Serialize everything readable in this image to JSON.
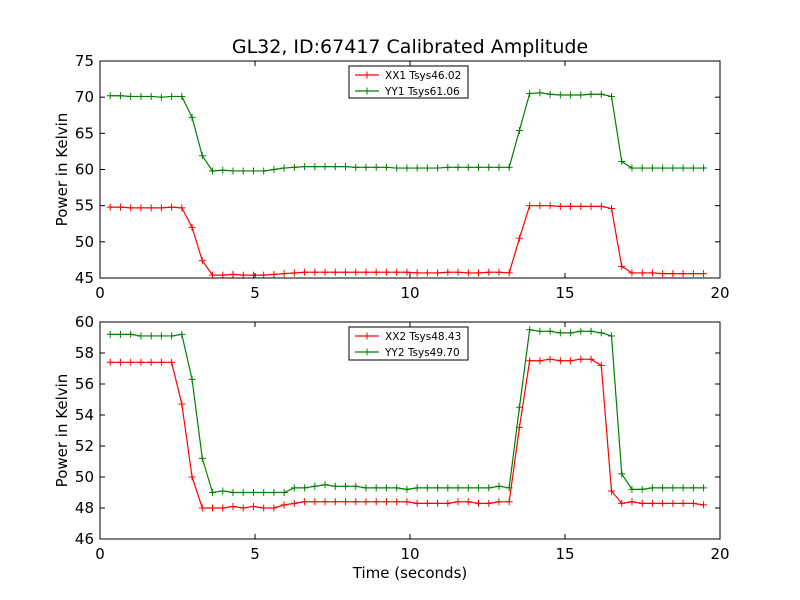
{
  "figure": {
    "title": "GL32, ID:67417 Calibrated Amplitude",
    "xlabel": "Time (seconds)"
  },
  "chart_data": [
    {
      "type": "line",
      "title": "GL32, ID:67417 Calibrated Amplitude",
      "xlabel": "",
      "ylabel": "Power in Kelvin",
      "xlim": [
        0,
        20
      ],
      "ylim": [
        45,
        75
      ],
      "xticks": [
        0,
        5,
        10,
        15,
        20
      ],
      "yticks": [
        45,
        50,
        55,
        60,
        65,
        70,
        75
      ],
      "grid": false,
      "legend_position": "top-center",
      "x": [
        0.33,
        0.66,
        0.99,
        1.32,
        1.65,
        1.98,
        2.31,
        2.64,
        2.97,
        3.3,
        3.63,
        3.96,
        4.29,
        4.62,
        4.95,
        5.28,
        5.61,
        5.94,
        6.27,
        6.6,
        6.93,
        7.26,
        7.59,
        7.92,
        8.25,
        8.58,
        8.91,
        9.24,
        9.57,
        9.9,
        10.23,
        10.56,
        10.89,
        11.22,
        11.55,
        11.88,
        12.21,
        12.54,
        12.87,
        13.2,
        13.53,
        13.86,
        14.19,
        14.52,
        14.85,
        15.18,
        15.51,
        15.84,
        16.17,
        16.5,
        16.83,
        17.16,
        17.49,
        17.82,
        18.15,
        18.48,
        18.81,
        19.14,
        19.47
      ],
      "series": [
        {
          "name": "XX1 Tsys46.02",
          "color": "#ff0000",
          "values": [
            54.8,
            54.8,
            54.7,
            54.7,
            54.7,
            54.7,
            54.8,
            54.7,
            52.0,
            47.4,
            45.4,
            45.4,
            45.5,
            45.4,
            45.4,
            45.4,
            45.5,
            45.6,
            45.7,
            45.8,
            45.8,
            45.8,
            45.8,
            45.8,
            45.8,
            45.8,
            45.8,
            45.8,
            45.8,
            45.8,
            45.7,
            45.7,
            45.7,
            45.8,
            45.8,
            45.7,
            45.7,
            45.8,
            45.8,
            45.7,
            50.5,
            55.0,
            55.0,
            55.0,
            54.9,
            54.9,
            54.9,
            54.9,
            54.9,
            54.6,
            46.6,
            45.7,
            45.7,
            45.7,
            45.6,
            45.6,
            45.6,
            45.6,
            45.6
          ]
        },
        {
          "name": "YY1 Tsys61.06",
          "color": "#008000",
          "values": [
            70.2,
            70.2,
            70.1,
            70.1,
            70.1,
            70.0,
            70.1,
            70.1,
            67.2,
            61.9,
            59.8,
            59.9,
            59.8,
            59.8,
            59.8,
            59.8,
            60.0,
            60.2,
            60.3,
            60.4,
            60.4,
            60.4,
            60.4,
            60.4,
            60.3,
            60.3,
            60.3,
            60.3,
            60.2,
            60.2,
            60.2,
            60.2,
            60.2,
            60.3,
            60.3,
            60.3,
            60.3,
            60.3,
            60.3,
            60.3,
            65.4,
            70.5,
            70.6,
            70.4,
            70.3,
            70.3,
            70.3,
            70.4,
            70.4,
            70.1,
            61.1,
            60.2,
            60.2,
            60.2,
            60.2,
            60.2,
            60.2,
            60.2,
            60.2
          ]
        }
      ]
    },
    {
      "type": "line",
      "title": "",
      "xlabel": "Time (seconds)",
      "ylabel": "Power in Kelvin",
      "xlim": [
        0,
        20
      ],
      "ylim": [
        46,
        60
      ],
      "xticks": [
        0,
        5,
        10,
        15,
        20
      ],
      "yticks": [
        46,
        48,
        50,
        52,
        54,
        56,
        58,
        60
      ],
      "grid": false,
      "legend_position": "top-center",
      "x": [
        0.33,
        0.66,
        0.99,
        1.32,
        1.65,
        1.98,
        2.31,
        2.64,
        2.97,
        3.3,
        3.63,
        3.96,
        4.29,
        4.62,
        4.95,
        5.28,
        5.61,
        5.94,
        6.27,
        6.6,
        6.93,
        7.26,
        7.59,
        7.92,
        8.25,
        8.58,
        8.91,
        9.24,
        9.57,
        9.9,
        10.23,
        10.56,
        10.89,
        11.22,
        11.55,
        11.88,
        12.21,
        12.54,
        12.87,
        13.2,
        13.53,
        13.86,
        14.19,
        14.52,
        14.85,
        15.18,
        15.51,
        15.84,
        16.17,
        16.5,
        16.83,
        17.16,
        17.49,
        17.82,
        18.15,
        18.48,
        18.81,
        19.14,
        19.47
      ],
      "series": [
        {
          "name": "XX2 Tsys48.43",
          "color": "#ff0000",
          "values": [
            57.4,
            57.4,
            57.4,
            57.4,
            57.4,
            57.4,
            57.4,
            54.7,
            50.0,
            48.0,
            48.0,
            48.0,
            48.1,
            48.0,
            48.1,
            48.0,
            48.0,
            48.2,
            48.3,
            48.4,
            48.4,
            48.4,
            48.4,
            48.4,
            48.4,
            48.4,
            48.4,
            48.4,
            48.4,
            48.4,
            48.3,
            48.3,
            48.3,
            48.3,
            48.4,
            48.4,
            48.3,
            48.3,
            48.4,
            48.4,
            53.2,
            57.5,
            57.5,
            57.6,
            57.5,
            57.5,
            57.6,
            57.6,
            57.2,
            49.1,
            48.3,
            48.4,
            48.3,
            48.3,
            48.3,
            48.3,
            48.3,
            48.3,
            48.2
          ]
        },
        {
          "name": "YY2 Tsys49.70",
          "color": "#008000",
          "values": [
            59.2,
            59.2,
            59.2,
            59.1,
            59.1,
            59.1,
            59.1,
            59.2,
            56.3,
            51.2,
            49.0,
            49.1,
            49.0,
            49.0,
            49.0,
            49.0,
            49.0,
            49.0,
            49.3,
            49.3,
            49.4,
            49.5,
            49.4,
            49.4,
            49.4,
            49.3,
            49.3,
            49.3,
            49.3,
            49.2,
            49.3,
            49.3,
            49.3,
            49.3,
            49.3,
            49.3,
            49.3,
            49.3,
            49.4,
            49.3,
            54.5,
            59.5,
            59.4,
            59.4,
            59.3,
            59.3,
            59.4,
            59.4,
            59.3,
            59.1,
            50.2,
            49.2,
            49.2,
            49.3,
            49.3,
            49.3,
            49.3,
            49.3,
            49.3
          ]
        }
      ]
    }
  ]
}
